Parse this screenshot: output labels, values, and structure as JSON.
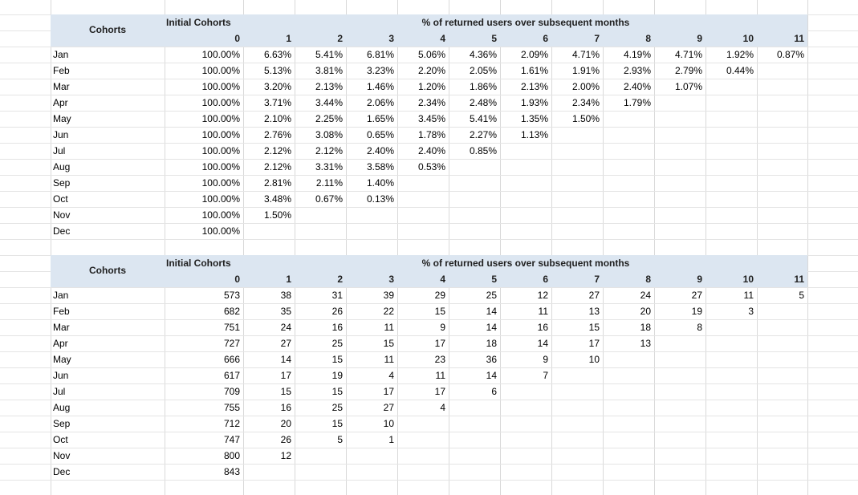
{
  "tables": [
    {
      "cohorts_label": "Cohorts",
      "initial_label": "Initial Cohorts",
      "returned_label": "% of returned users over subsequent months",
      "columns": [
        "0",
        "1",
        "2",
        "3",
        "4",
        "5",
        "6",
        "7",
        "8",
        "9",
        "10",
        "11"
      ],
      "rows": [
        {
          "month": "Jan",
          "values": [
            "100.00%",
            "6.63%",
            "5.41%",
            "6.81%",
            "5.06%",
            "4.36%",
            "2.09%",
            "4.71%",
            "4.19%",
            "4.71%",
            "1.92%",
            "0.87%"
          ]
        },
        {
          "month": "Feb",
          "values": [
            "100.00%",
            "5.13%",
            "3.81%",
            "3.23%",
            "2.20%",
            "2.05%",
            "1.61%",
            "1.91%",
            "2.93%",
            "2.79%",
            "0.44%"
          ]
        },
        {
          "month": "Mar",
          "values": [
            "100.00%",
            "3.20%",
            "2.13%",
            "1.46%",
            "1.20%",
            "1.86%",
            "2.13%",
            "2.00%",
            "2.40%",
            "1.07%"
          ]
        },
        {
          "month": "Apr",
          "values": [
            "100.00%",
            "3.71%",
            "3.44%",
            "2.06%",
            "2.34%",
            "2.48%",
            "1.93%",
            "2.34%",
            "1.79%"
          ]
        },
        {
          "month": "May",
          "values": [
            "100.00%",
            "2.10%",
            "2.25%",
            "1.65%",
            "3.45%",
            "5.41%",
            "1.35%",
            "1.50%"
          ]
        },
        {
          "month": "Jun",
          "values": [
            "100.00%",
            "2.76%",
            "3.08%",
            "0.65%",
            "1.78%",
            "2.27%",
            "1.13%"
          ]
        },
        {
          "month": "Jul",
          "values": [
            "100.00%",
            "2.12%",
            "2.12%",
            "2.40%",
            "2.40%",
            "0.85%"
          ]
        },
        {
          "month": "Aug",
          "values": [
            "100.00%",
            "2.12%",
            "3.31%",
            "3.58%",
            "0.53%"
          ]
        },
        {
          "month": "Sep",
          "values": [
            "100.00%",
            "2.81%",
            "2.11%",
            "1.40%"
          ]
        },
        {
          "month": "Oct",
          "values": [
            "100.00%",
            "3.48%",
            "0.67%",
            "0.13%"
          ]
        },
        {
          "month": "Nov",
          "values": [
            "100.00%",
            "1.50%"
          ]
        },
        {
          "month": "Dec",
          "values": [
            "100.00%"
          ]
        }
      ]
    },
    {
      "cohorts_label": "Cohorts",
      "initial_label": "Initial Cohorts",
      "returned_label": "% of returned users over subsequent months",
      "columns": [
        "0",
        "1",
        "2",
        "3",
        "4",
        "5",
        "6",
        "7",
        "8",
        "9",
        "10",
        "11"
      ],
      "rows": [
        {
          "month": "Jan",
          "values": [
            "573",
            "38",
            "31",
            "39",
            "29",
            "25",
            "12",
            "27",
            "24",
            "27",
            "11",
            "5"
          ]
        },
        {
          "month": "Feb",
          "values": [
            "682",
            "35",
            "26",
            "22",
            "15",
            "14",
            "11",
            "13",
            "20",
            "19",
            "3"
          ]
        },
        {
          "month": "Mar",
          "values": [
            "751",
            "24",
            "16",
            "11",
            "9",
            "14",
            "16",
            "15",
            "18",
            "8"
          ]
        },
        {
          "month": "Apr",
          "values": [
            "727",
            "27",
            "25",
            "15",
            "17",
            "18",
            "14",
            "17",
            "13"
          ]
        },
        {
          "month": "May",
          "values": [
            "666",
            "14",
            "15",
            "11",
            "23",
            "36",
            "9",
            "10"
          ]
        },
        {
          "month": "Jun",
          "values": [
            "617",
            "17",
            "19",
            "4",
            "11",
            "14",
            "7"
          ]
        },
        {
          "month": "Jul",
          "values": [
            "709",
            "15",
            "15",
            "17",
            "17",
            "6"
          ]
        },
        {
          "month": "Aug",
          "values": [
            "755",
            "16",
            "25",
            "27",
            "4"
          ]
        },
        {
          "month": "Sep",
          "values": [
            "712",
            "20",
            "15",
            "10"
          ]
        },
        {
          "month": "Oct",
          "values": [
            "747",
            "26",
            "5",
            "1"
          ]
        },
        {
          "month": "Nov",
          "values": [
            "800",
            "12"
          ]
        },
        {
          "month": "Dec",
          "values": [
            "843"
          ]
        }
      ]
    }
  ],
  "colors": {
    "header_band": "#dce6f1",
    "gridline": "#d9d9d9"
  }
}
